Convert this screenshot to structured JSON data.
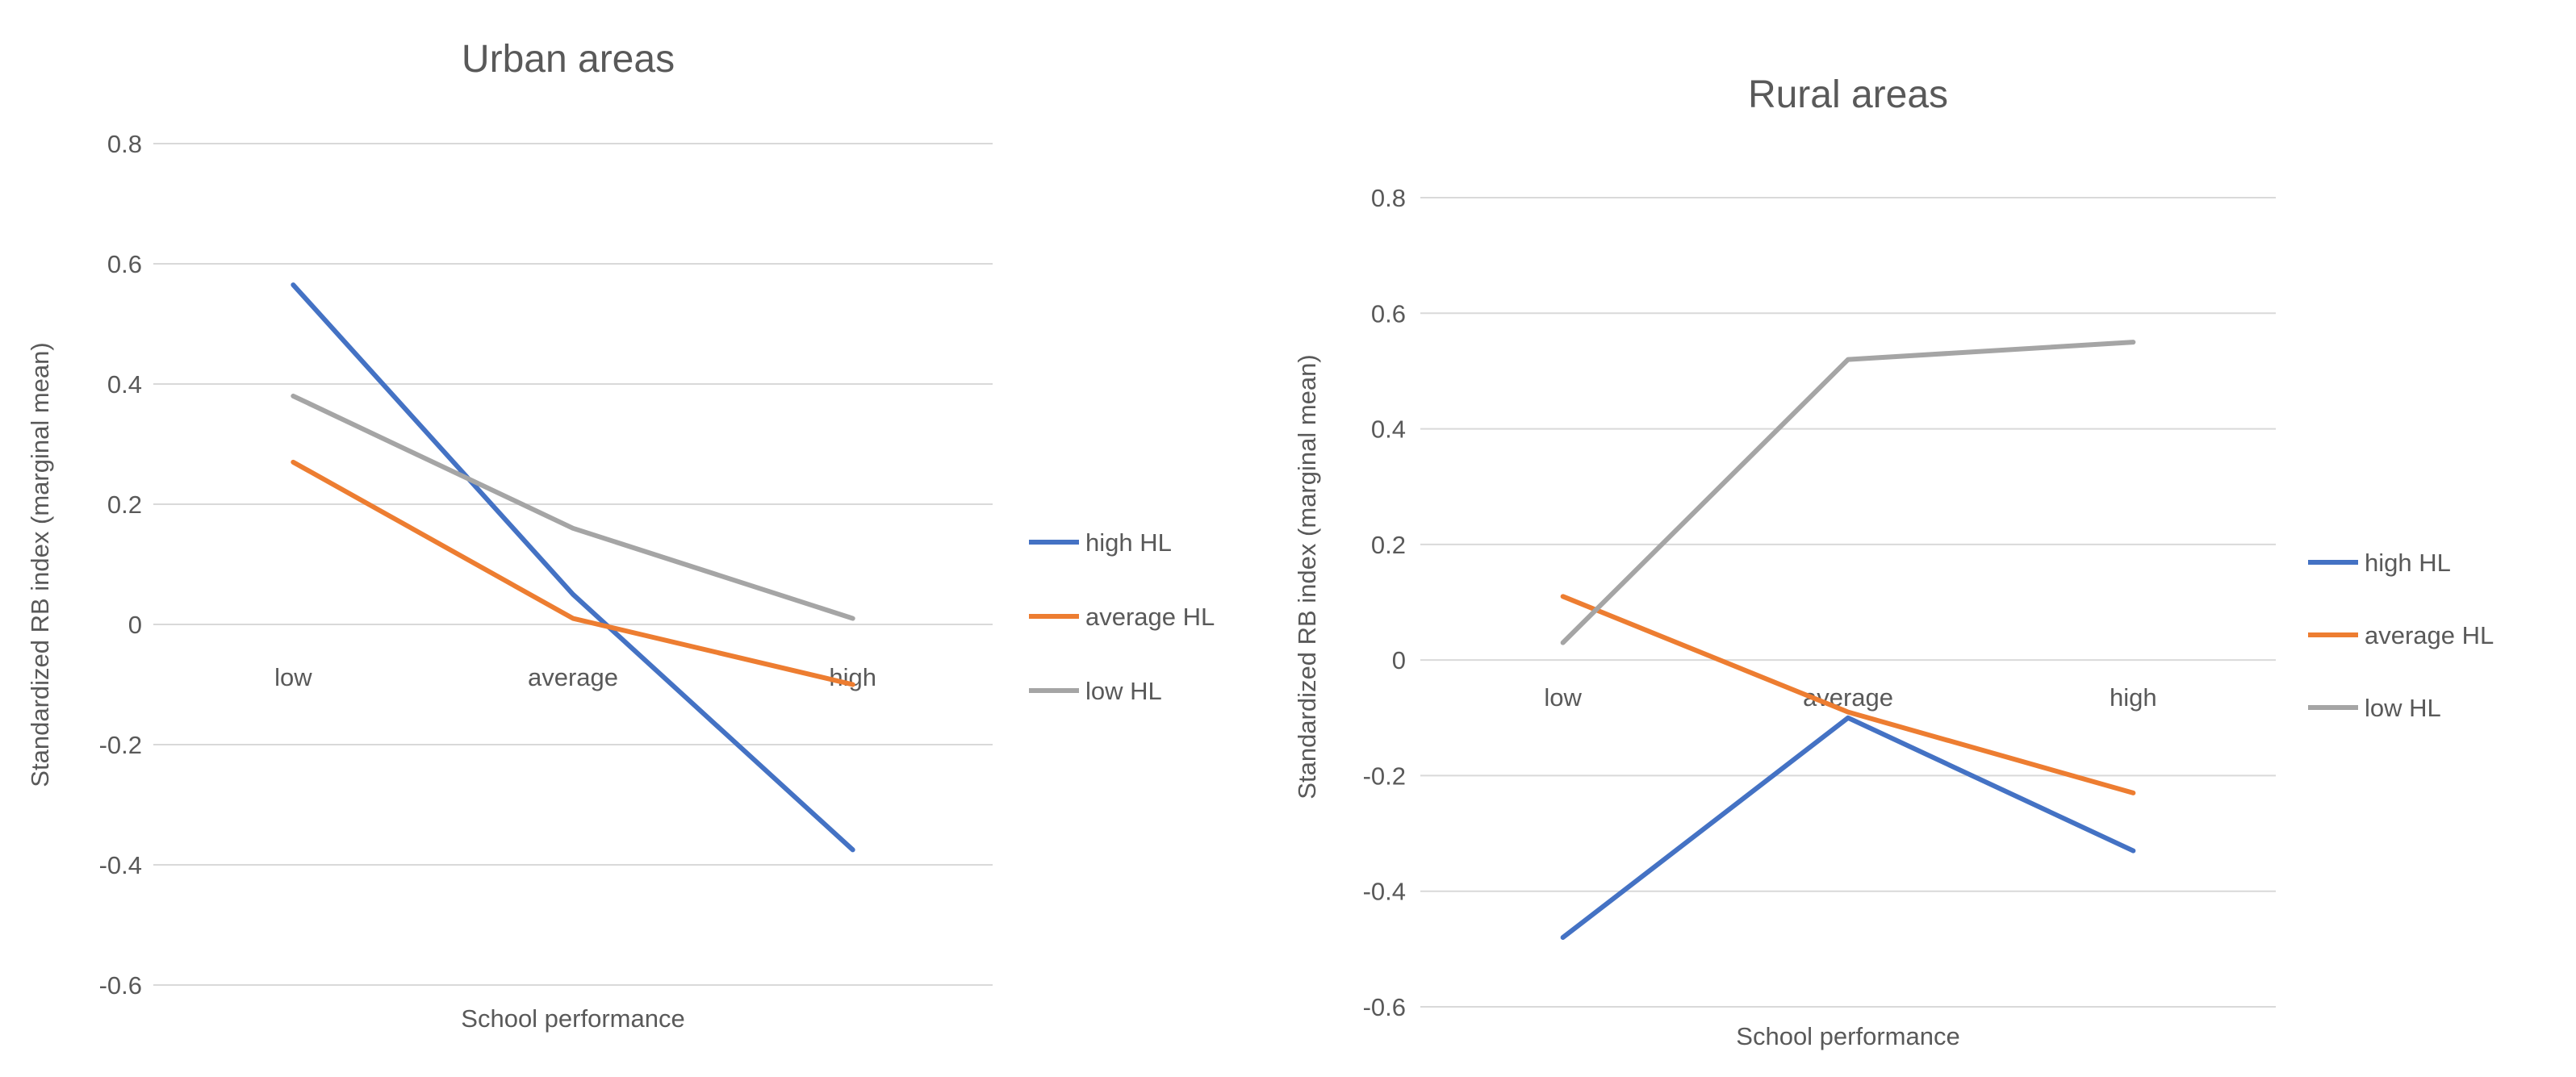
{
  "chart_data": [
    {
      "type": "line",
      "title": "Urban areas",
      "xlabel": "School performance",
      "ylabel": "Standardized RB index (marginal mean)",
      "categories": [
        "low",
        "average",
        "high"
      ],
      "yticks": [
        "0.8",
        "0.6",
        "0.4",
        "0.2",
        "0",
        "-0.2",
        "-0.4",
        "-0.6"
      ],
      "ylim": [
        -0.6,
        0.8
      ],
      "grid": true,
      "legend_position": "right",
      "series": [
        {
          "name": "high HL",
          "color": "#4472c4",
          "values": [
            0.565,
            0.05,
            -0.375
          ]
        },
        {
          "name": "average HL",
          "color": "#ed7d31",
          "values": [
            0.27,
            0.01,
            -0.1
          ]
        },
        {
          "name": "low HL",
          "color": "#a5a5a5",
          "values": [
            0.38,
            0.16,
            0.01
          ]
        }
      ]
    },
    {
      "type": "line",
      "title": "Rural areas",
      "xlabel": "School performance",
      "ylabel": "Standardized RB index (marginal mean)",
      "categories": [
        "low",
        "average",
        "high"
      ],
      "yticks": [
        "0.8",
        "0.6",
        "0.4",
        "0.2",
        "0",
        "-0.2",
        "-0.4",
        "-0.6"
      ],
      "ylim": [
        -0.6,
        0.8
      ],
      "grid": true,
      "legend_position": "right",
      "series": [
        {
          "name": "high HL",
          "color": "#4472c4",
          "values": [
            -0.48,
            -0.1,
            -0.33
          ]
        },
        {
          "name": "average HL",
          "color": "#ed7d31",
          "values": [
            0.11,
            -0.09,
            -0.23
          ]
        },
        {
          "name": "low HL",
          "color": "#a5a5a5",
          "values": [
            0.03,
            0.52,
            0.55
          ]
        }
      ]
    }
  ]
}
